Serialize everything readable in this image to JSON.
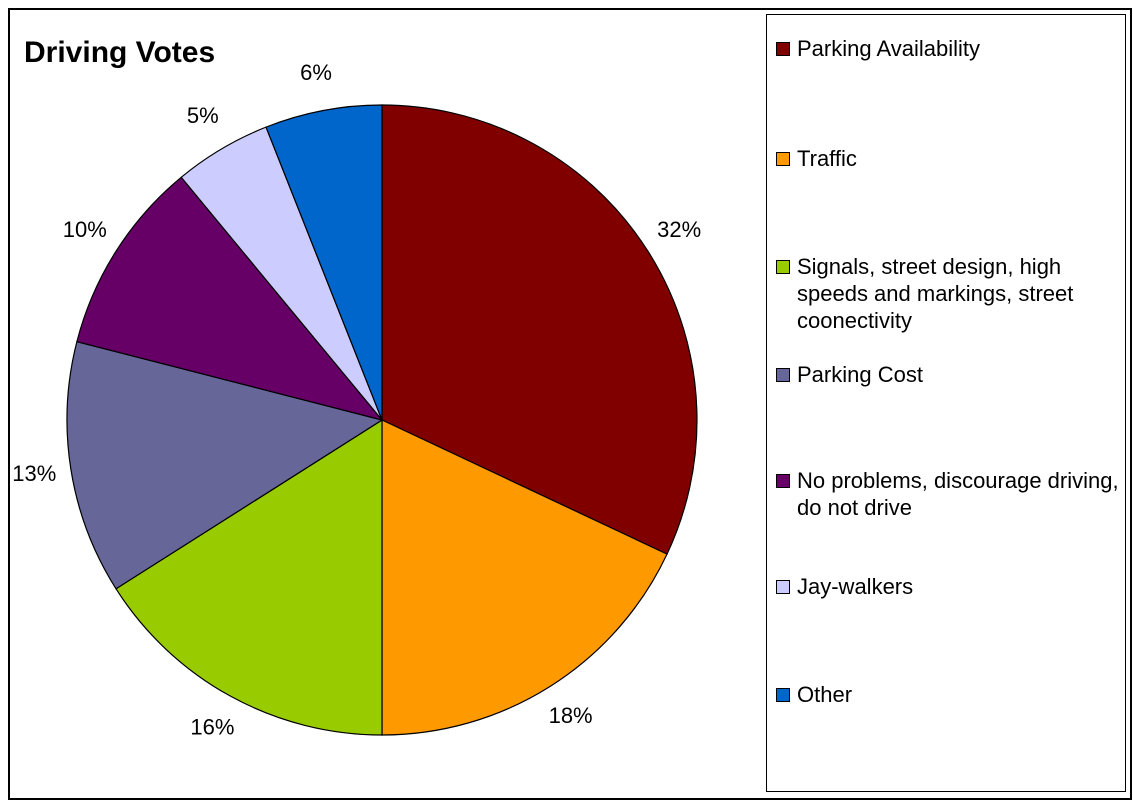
{
  "chart_data": {
    "type": "pie",
    "title": "Driving Votes",
    "categories": [
      "Parking Availability",
      "Traffic",
      "Signals, street design, high speeds and markings, street coonectivity",
      "Parking Cost",
      "No problems, discourage driving, do not drive",
      "Jay-walkers",
      "Other"
    ],
    "values": [
      32,
      18,
      16,
      13,
      10,
      5,
      6
    ],
    "value_labels": [
      "32%",
      "18%",
      "16%",
      "13%",
      "10%",
      "5%",
      "6%"
    ],
    "colors": [
      "#800000",
      "#FF9900",
      "#99CC00",
      "#666699",
      "#660066",
      "#CCCCFF",
      "#0066CC"
    ],
    "legend_position": "right"
  }
}
